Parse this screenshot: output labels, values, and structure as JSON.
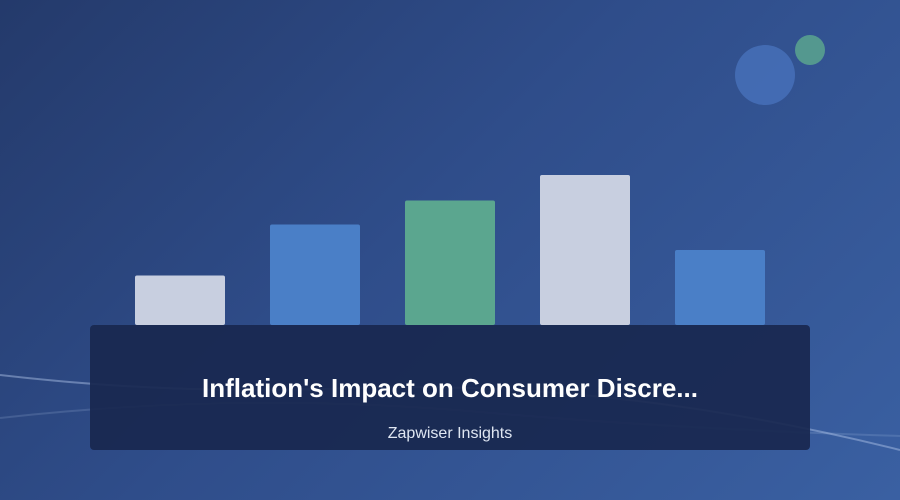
{
  "card": {
    "title": "Inflation's Impact on Consumer Discre...",
    "publisher": "Zapwiser Insights"
  },
  "illustration": {
    "bars": [
      {
        "relative_height": 0.33,
        "color": "#c8cfe0"
      },
      {
        "relative_height": 0.67,
        "color": "#4a7fc7"
      },
      {
        "relative_height": 0.83,
        "color": "#5ba68f"
      },
      {
        "relative_height": 1.0,
        "color": "#c8cfe0"
      },
      {
        "relative_height": 0.5,
        "color": "#4a7fc7"
      }
    ],
    "circles": [
      {
        "name": "large-blue-circle",
        "color": "#4770b8"
      },
      {
        "name": "small-teal-circle",
        "color": "#5aa58e"
      }
    ]
  },
  "theme": {
    "background_start": "#243a6b",
    "background_end": "#3a60a2",
    "panel": "#192850",
    "title_color": "#ffffff",
    "subtitle_color": "#dfe6f2"
  }
}
